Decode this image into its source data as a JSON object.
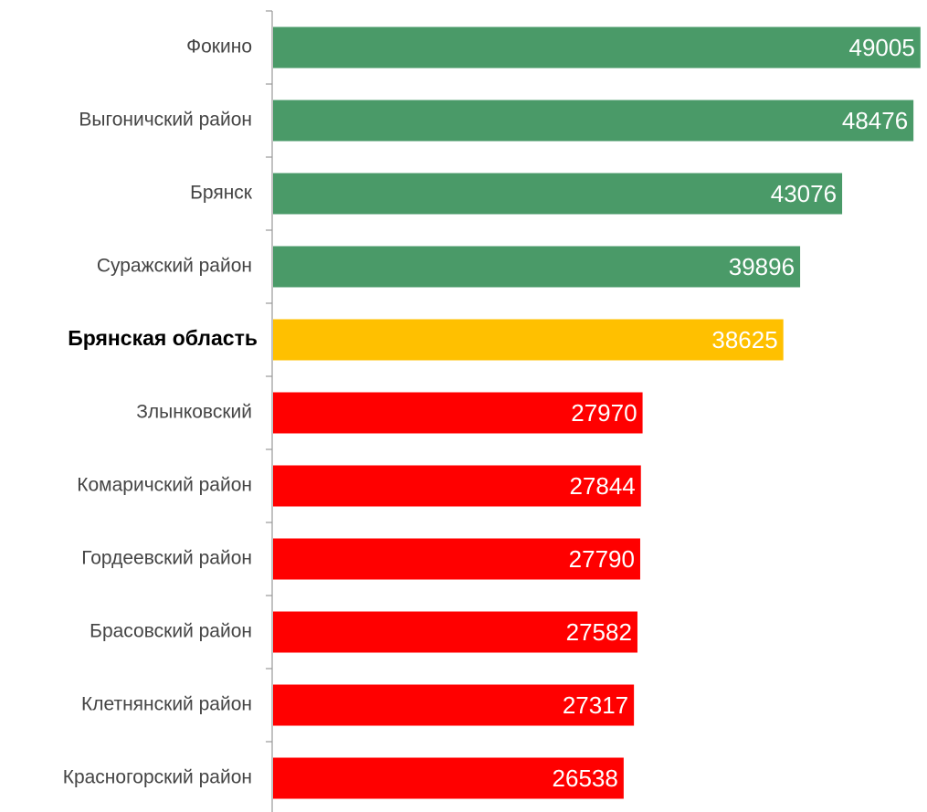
{
  "chart_data": {
    "type": "bar",
    "orientation": "horizontal",
    "categories": [
      "Фокино",
      "Выгоничский район",
      "Брянск",
      "Суражский район",
      "Брянская область",
      "Злынковский",
      "Комаричский район",
      "Гордеевский район",
      "Брасовский район",
      "Клетнянский район",
      "Красногорский район"
    ],
    "values": [
      49005,
      48476,
      43076,
      39896,
      38625,
      27970,
      27844,
      27790,
      27582,
      27317,
      26538
    ],
    "colors": [
      "#4a9a68",
      "#4a9a68",
      "#4a9a68",
      "#4a9a68",
      "#ffc000",
      "#ff0000",
      "#ff0000",
      "#ff0000",
      "#ff0000",
      "#ff0000",
      "#ff0000"
    ],
    "xlim": [
      0,
      49500
    ]
  }
}
